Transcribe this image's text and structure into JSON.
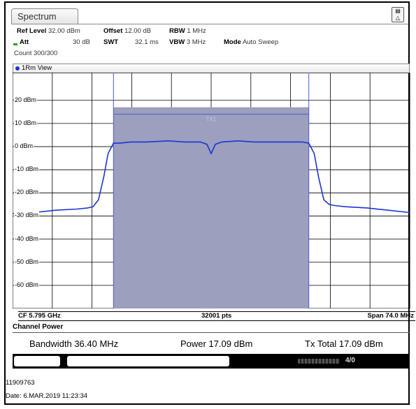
{
  "tab": {
    "label": "Spectrum"
  },
  "settings": {
    "ref_level_label": "Ref Level",
    "ref_level_value": "32.00 dBm",
    "offset_label": "Offset",
    "offset_value": "12.00 dB",
    "rbw_label": "RBW",
    "rbw_value": "1 MHz",
    "att_label": "Att",
    "att_value": "30 dB",
    "swt_label": "SWT",
    "swt_value": "32.1 ms",
    "vbw_label": "VBW",
    "vbw_value": "3 MHz",
    "mode_label": "Mode",
    "mode_value": "Auto Sweep",
    "count": "Count 300/300"
  },
  "view": {
    "label": "1Rm View"
  },
  "footer": {
    "cf": "CF 5.795 GHz",
    "pts": "32001 pts",
    "span": "Span 74.0 MHz"
  },
  "channel_power": {
    "title": "Channel Power",
    "bandwidth": "Bandwidth 36.40 MHz",
    "power": "Power 17.09 dBm",
    "tx_total": "Tx Total 17.09 dBm"
  },
  "status": {
    "progress_label": "4/0"
  },
  "serial": "11909763",
  "date": "Date: 6.MAR.2019 11:23:34",
  "colors": {
    "trace": "#1a35d6",
    "channel_fill": "#9c9fbd",
    "grid": "#000000"
  },
  "chart_data": {
    "type": "line",
    "ylabel": "",
    "yticks": [
      "20 dBm",
      "10 dBm",
      "0 dBm",
      "-10 dBm",
      "-20 dBm",
      "-30 dBm",
      "-40 dBm",
      "-50 dBm",
      "-60 dBm"
    ],
    "ylim": [
      -70,
      32
    ],
    "x_unit": "MHz offset from CF",
    "xlim": [
      -37,
      37
    ],
    "channel": {
      "label": "TX1",
      "start": -18.2,
      "end": 18.2,
      "level": 17
    },
    "series": [
      {
        "name": "",
        "x": [
          -37,
          -33,
          -29,
          -25,
          -23,
          -22,
          -21,
          -20,
          -19.2,
          -18.2,
          -17,
          -15,
          -12,
          -8,
          -5,
          -2,
          -0.8,
          0,
          0.8,
          2,
          5,
          8,
          12,
          15,
          17,
          18.2,
          19.2,
          20,
          21,
          22,
          23,
          25,
          29,
          33,
          37
        ],
        "y": [
          -29,
          -28.5,
          -27.5,
          -27,
          -26.5,
          -26,
          -23,
          -13,
          -3,
          1.5,
          1.5,
          2,
          2,
          2.5,
          2,
          2,
          1,
          -3,
          1,
          2,
          2.5,
          2,
          2,
          2,
          2,
          1.5,
          -3,
          -13,
          -23,
          -25,
          -25.5,
          -26,
          -26.5,
          -27.5,
          -28.5
        ]
      }
    ]
  }
}
